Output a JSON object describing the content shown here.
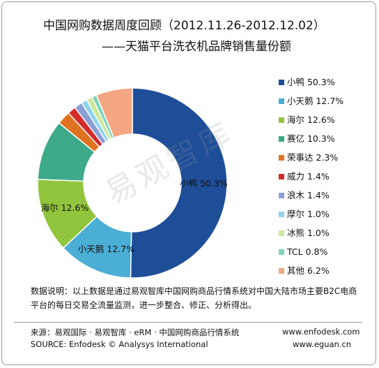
{
  "title": "中国网购数据周度回顾（2012.11.26-2012.12.02）",
  "subtitle": "——天猫平台洗衣机品牌销售量份额",
  "watermark": "易观智库",
  "chart_data": {
    "type": "pie",
    "categories": [
      "小鸭",
      "小天鹅",
      "海尔",
      "赛亿",
      "荣事达",
      "威力",
      "浪木",
      "摩尔",
      "冰熊",
      "TCL",
      "其他"
    ],
    "values": [
      50.3,
      12.7,
      12.6,
      10.3,
      2.3,
      1.4,
      1.4,
      1.0,
      1.0,
      0.8,
      6.2
    ],
    "legend_labels": [
      "小鸭 50.3%",
      "小天鹅 12.7%",
      "海尔 12.6%",
      "赛亿 10.3%",
      "荣事达 2.3%",
      "威力 1.4%",
      "浪木 1.4%",
      "摩尔 1.0%",
      "冰熊 1.0%",
      "TCL 0.8%",
      "其他 6.2%"
    ],
    "slice_labels": [
      {
        "name": "小鸭",
        "value": "50.3%"
      },
      {
        "name": "小天鹅",
        "value": "12.7%"
      },
      {
        "name": "海尔",
        "value": "12.6%"
      }
    ],
    "colors": [
      "#1f4e99",
      "#4aaed5",
      "#91c53e",
      "#3daa8a",
      "#e07320",
      "#d42a2a",
      "#8c9fd6",
      "#8fd4ee",
      "#cce89a",
      "#7dd4b8",
      "#f4a582"
    ],
    "legend_position": "right",
    "donut": true
  },
  "note": "数据说明：以上数据是通过易观智库中国网购商品行情系统对中国大陆市场主要B2C电商平台的每日交易全流量监测，进一步整合、修正、分析得出。",
  "footer": {
    "source_cn": "来源：易观国际 · 易观智库 · eRM · 中国网购商品行情系统",
    "source_en": "SOURCE: Enfodesk © Analysys International",
    "url1": "www.enfodesk.com",
    "url2": "www.eguan.cn"
  }
}
